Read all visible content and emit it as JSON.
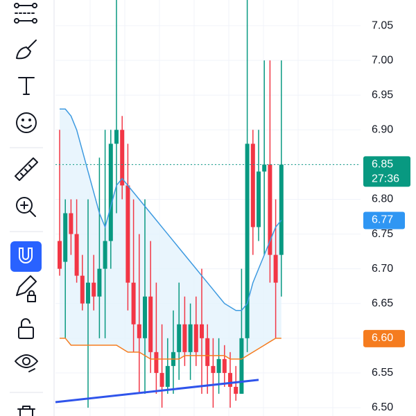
{
  "chart_data": {
    "type": "candlestick",
    "open": [
      6.74,
      6.71,
      6.78,
      6.75,
      6.69,
      6.65,
      6.68,
      6.66,
      6.7,
      6.74,
      6.88,
      6.9,
      6.82,
      6.68,
      6.62,
      6.6,
      6.66,
      6.58,
      6.55,
      6.53,
      6.56,
      6.58,
      6.62,
      6.58,
      6.62,
      6.62,
      6.6,
      6.56,
      6.55,
      6.57,
      6.55,
      6.53,
      6.52,
      6.6,
      6.88,
      6.76,
      6.84,
      6.85,
      6.72,
      6.72
    ],
    "high": [
      6.9,
      6.8,
      6.8,
      6.8,
      6.72,
      6.8,
      6.72,
      6.86,
      6.9,
      6.9,
      7.1,
      6.92,
      6.88,
      6.8,
      6.75,
      6.8,
      6.74,
      6.68,
      6.62,
      6.6,
      6.64,
      6.68,
      6.66,
      6.65,
      6.66,
      6.7,
      6.62,
      6.6,
      6.6,
      6.59,
      6.58,
      6.56,
      6.7,
      7.1,
      6.9,
      6.9,
      7.0,
      7.0,
      6.8,
      7.0
    ],
    "low": [
      6.69,
      6.6,
      6.72,
      6.68,
      6.64,
      6.5,
      6.64,
      6.6,
      6.6,
      6.7,
      6.78,
      6.8,
      6.64,
      6.58,
      6.52,
      6.52,
      6.55,
      6.52,
      6.5,
      6.52,
      6.52,
      6.54,
      6.56,
      6.54,
      6.56,
      6.52,
      6.52,
      6.5,
      6.52,
      6.53,
      6.5,
      6.51,
      6.52,
      6.58,
      6.72,
      6.74,
      6.72,
      6.68,
      6.6,
      6.66
    ],
    "close": [
      6.7,
      6.78,
      6.75,
      6.69,
      6.65,
      6.68,
      6.66,
      6.7,
      6.74,
      6.88,
      6.9,
      6.82,
      6.68,
      6.62,
      6.6,
      6.66,
      6.58,
      6.55,
      6.53,
      6.56,
      6.58,
      6.62,
      6.58,
      6.62,
      6.58,
      6.6,
      6.56,
      6.55,
      6.57,
      6.55,
      6.53,
      6.52,
      6.6,
      6.88,
      6.76,
      6.84,
      6.85,
      6.72,
      6.68,
      6.85
    ],
    "up_color": "#089981",
    "down_color": "#f23645",
    "series": [
      {
        "name": "ma",
        "color": "#3d9ae0",
        "values": [
          6.93,
          6.93,
          6.92,
          6.9,
          6.87,
          6.84,
          6.81,
          6.78,
          6.76,
          6.79,
          6.82,
          6.83,
          6.82,
          6.81,
          6.8,
          6.79,
          6.78,
          6.77,
          6.76,
          6.75,
          6.74,
          6.73,
          6.72,
          6.71,
          6.7,
          6.69,
          6.68,
          6.67,
          6.66,
          6.65,
          6.645,
          6.64,
          6.64,
          6.65,
          6.68,
          6.7,
          6.72,
          6.74,
          6.76,
          6.77
        ]
      },
      {
        "name": "ema",
        "color": "#f57c1f",
        "values": [
          6.6,
          6.6,
          6.59,
          6.59,
          6.59,
          6.59,
          6.59,
          6.59,
          6.59,
          6.59,
          6.59,
          6.585,
          6.58,
          6.58,
          6.58,
          6.575,
          6.57,
          6.57,
          6.57,
          6.57,
          6.57,
          6.57,
          6.575,
          6.575,
          6.575,
          6.575,
          6.575,
          6.575,
          6.575,
          6.575,
          6.57,
          6.57,
          6.57,
          6.575,
          6.58,
          6.585,
          6.59,
          6.595,
          6.6,
          6.6
        ]
      }
    ],
    "trendline": {
      "color": "#2f54eb",
      "values": [
        6.508,
        6.54
      ]
    },
    "last_price": {
      "value": 6.85,
      "label": "6.85",
      "countdown": "27:36",
      "color": "#089981"
    },
    "ma_label": {
      "value": 6.77,
      "label": "6.77",
      "color": "#2f96f3"
    },
    "ema_label": {
      "value": 6.6,
      "label": "6.60",
      "color": "#f57c1f"
    },
    "ylim": [
      6.488,
      7.087
    ],
    "yticks": [
      {
        "value": 6.5,
        "label": "6.50"
      },
      6.55,
      {
        "value": 6.6,
        "label": "6.60"
      },
      6.65,
      {
        "value": 6.7,
        "label": "6.70"
      },
      6.75,
      {
        "value": 6.8,
        "label": "6.80"
      },
      6.85,
      {
        "value": 6.9,
        "label": "6.90"
      },
      6.95,
      {
        "value": 7.0,
        "label": "7.00"
      },
      7.05
    ],
    "grid": true
  }
}
